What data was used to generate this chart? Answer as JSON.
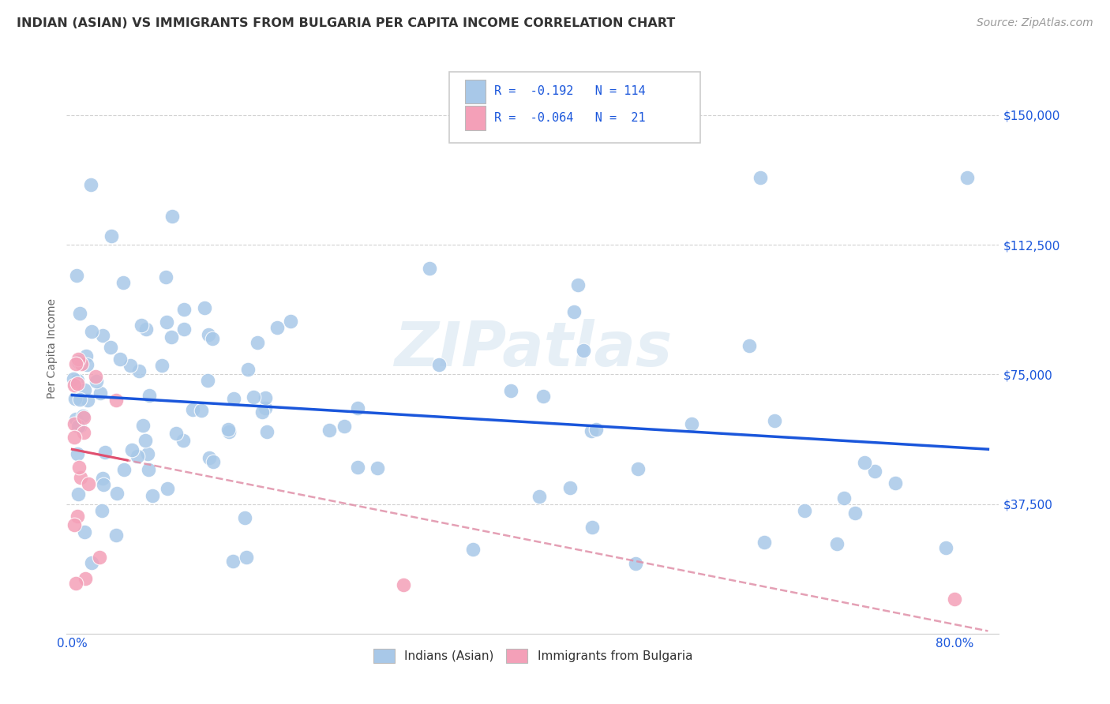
{
  "title": "INDIAN (ASIAN) VS IMMIGRANTS FROM BULGARIA PER CAPITA INCOME CORRELATION CHART",
  "source": "Source: ZipAtlas.com",
  "ylabel": "Per Capita Income",
  "ytick_labels": [
    "$150,000",
    "$112,500",
    "$75,000",
    "$37,500"
  ],
  "ytick_values": [
    150000,
    112500,
    75000,
    37500
  ],
  "ymin": 0,
  "ymax": 165000,
  "xmin": -0.005,
  "xmax": 0.84,
  "color_blue": "#a8c8e8",
  "color_pink": "#f4a0b8",
  "line_blue": "#1a56db",
  "line_pink_solid": "#e05070",
  "line_pink_dash": "#e090a8",
  "watermark": "ZIPatlas",
  "legend_label1": "Indians (Asian)",
  "legend_label2": "Immigrants from Bulgaria",
  "background_color": "#ffffff",
  "grid_color": "#cccccc",
  "title_color": "#333333",
  "axis_label_color": "#1a56db",
  "blue_trend_x": [
    0.0,
    0.83
  ],
  "blue_trend_y": [
    70000,
    50000
  ],
  "pink_trend_x": [
    0.0,
    0.83
  ],
  "pink_trend_y": [
    57000,
    15000
  ]
}
